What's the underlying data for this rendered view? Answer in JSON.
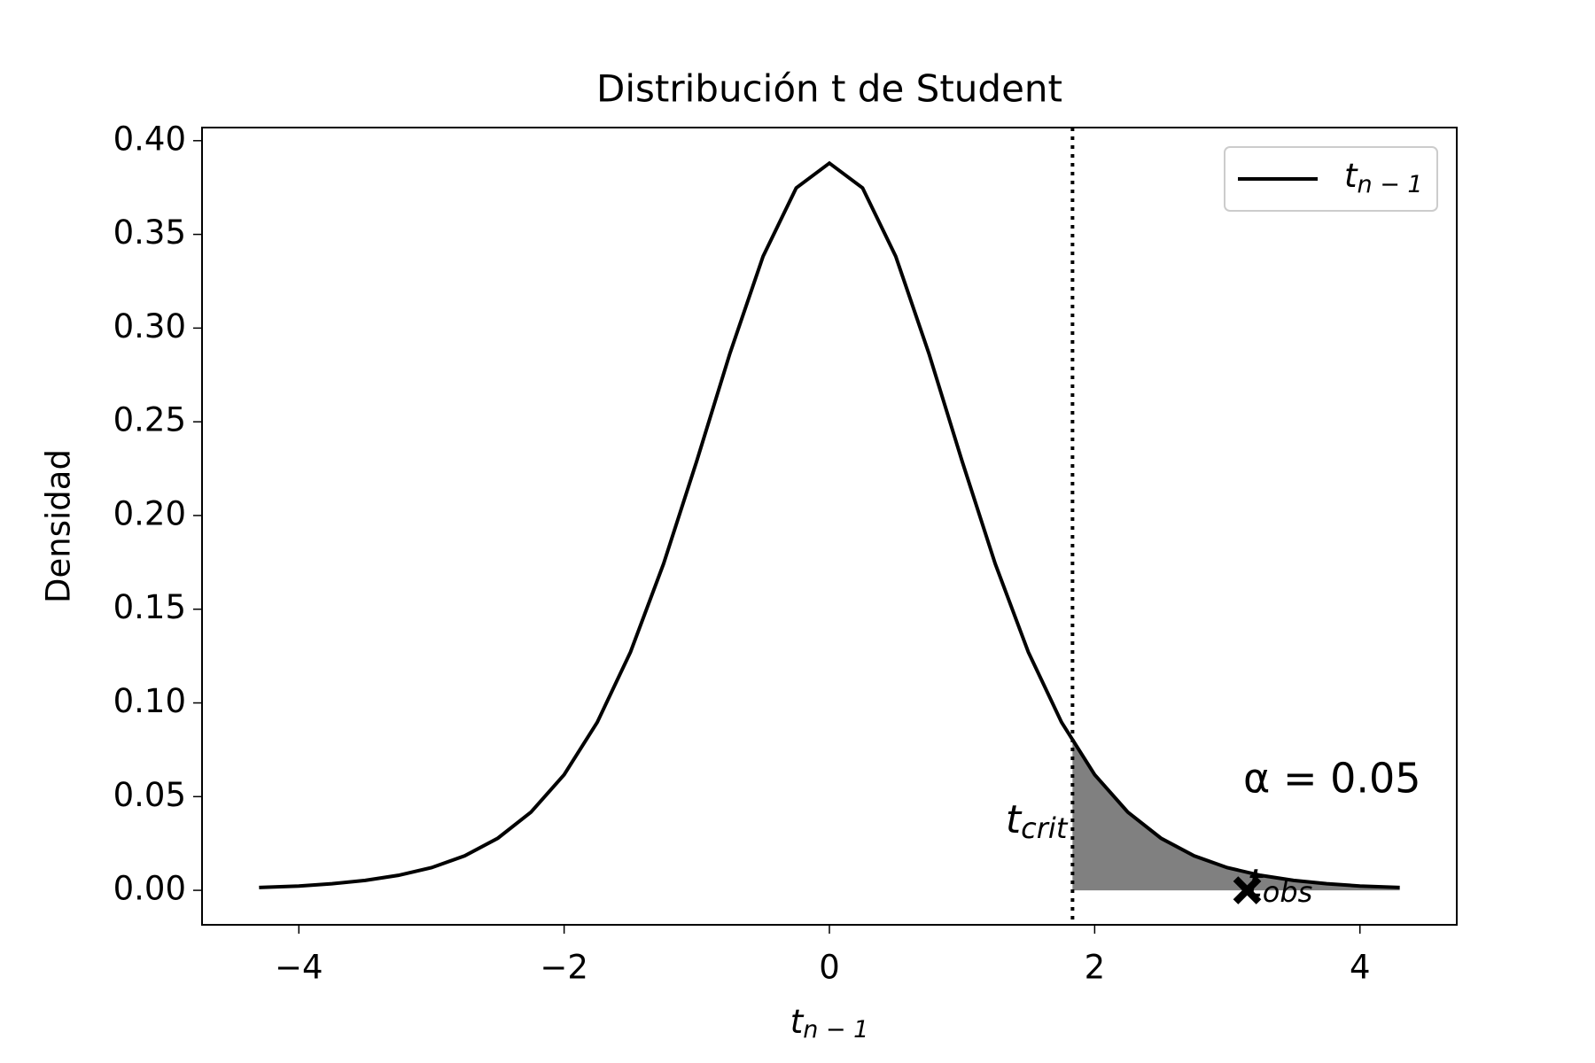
{
  "chart_data": {
    "type": "line",
    "title": "Distribución t de Student",
    "xlabel": {
      "base": "t",
      "sub": "n − 1"
    },
    "ylabel": "Densidad",
    "x": [
      -4.3,
      -4,
      -3.75,
      -3.5,
      -3.25,
      -3,
      -2.75,
      -2.5,
      -2.25,
      -2,
      -1.75,
      -1.5,
      -1.25,
      -1,
      -0.75,
      -0.5,
      -0.25,
      0,
      0.25,
      0.5,
      0.75,
      1,
      1.25,
      1.5,
      1.75,
      2,
      2.25,
      2.5,
      2.75,
      3,
      3.25,
      3.5,
      3.75,
      4,
      4.3
    ],
    "series": [
      {
        "name": {
          "base": "t",
          "sub": "n − 1"
        },
        "color": "#000000",
        "values": [
          0.0015,
          0.0023,
          0.0035,
          0.0053,
          0.008,
          0.0121,
          0.0184,
          0.0278,
          0.0417,
          0.0617,
          0.0897,
          0.1271,
          0.1743,
          0.2291,
          0.2865,
          0.3383,
          0.3748,
          0.388,
          0.3748,
          0.3383,
          0.2865,
          0.2291,
          0.1743,
          0.1271,
          0.0897,
          0.0617,
          0.0417,
          0.0278,
          0.0184,
          0.0121,
          0.008,
          0.0053,
          0.0035,
          0.0023,
          0.0015
        ]
      }
    ],
    "t_crit": 1.833,
    "t_crit_density": 0.0794,
    "shade_color": "#808080",
    "t_crit_label": {
      "base": "t",
      "sub": "crit"
    },
    "t_obs": 3.15,
    "t_obs_density": 0,
    "t_obs_label": {
      "base": "t",
      "sub": "obs"
    },
    "alpha_label": "α = 0.05",
    "xlim": [
      -4.73,
      4.73
    ],
    "ylim": [
      -0.0184,
      0.407
    ],
    "xticks": [
      {
        "value": -4,
        "label": "−4"
      },
      {
        "value": -2,
        "label": "−2"
      },
      0,
      2,
      4
    ],
    "yticks": [
      {
        "value": 0,
        "label": "0.00"
      },
      {
        "value": 0.05,
        "label": "0.05"
      },
      {
        "value": 0.1,
        "label": "0.10"
      },
      {
        "value": 0.15,
        "label": "0.15"
      },
      {
        "value": 0.2,
        "label": "0.20"
      },
      {
        "value": 0.25,
        "label": "0.25"
      },
      {
        "value": 0.3,
        "label": "0.30"
      },
      {
        "value": 0.35,
        "label": "0.35"
      },
      {
        "value": 0.4,
        "label": "0.40"
      }
    ],
    "legend": "upper right"
  }
}
